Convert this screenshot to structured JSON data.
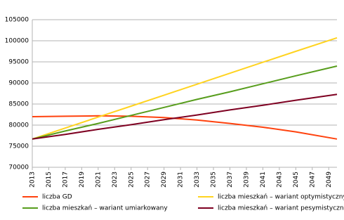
{
  "chart_data": {
    "type": "line",
    "x": [
      2013,
      2017,
      2021,
      2025,
      2029,
      2033,
      2037,
      2041,
      2045,
      2050
    ],
    "series": [
      {
        "name": "liczba GD",
        "color": "#ff420e",
        "values": [
          82000,
          82100,
          82200,
          82100,
          81800,
          81200,
          80400,
          79500,
          78400,
          76700
        ]
      },
      {
        "name": "liczba mieszkań – wariant optymistyczny",
        "color": "#ffd320",
        "values": [
          76700,
          79300,
          81900,
          84500,
          87100,
          89700,
          92300,
          94900,
          97500,
          100700
        ]
      },
      {
        "name": "liczba mieszkań – wariant umiarkowany",
        "color": "#579d1c",
        "values": [
          76700,
          78600,
          80400,
          82300,
          84200,
          86100,
          87900,
          89800,
          91700,
          94000
        ]
      },
      {
        "name": "liczba mieszkań – wariant pesymistyczny",
        "color": "#7e0021",
        "values": [
          76700,
          77800,
          79000,
          80100,
          81300,
          82400,
          83600,
          84700,
          85900,
          87300
        ]
      }
    ],
    "xlim": [
      2013,
      2050
    ],
    "xticks": [
      2013,
      2015,
      2017,
      2019,
      2021,
      2023,
      2025,
      2027,
      2029,
      2031,
      2033,
      2035,
      2037,
      2039,
      2041,
      2043,
      2045,
      2047,
      2049
    ],
    "ylim": [
      70000,
      105000
    ],
    "yticks": [
      70000,
      75000,
      80000,
      85000,
      90000,
      95000,
      100000,
      105000
    ],
    "grid": true,
    "legend": "bottom"
  }
}
